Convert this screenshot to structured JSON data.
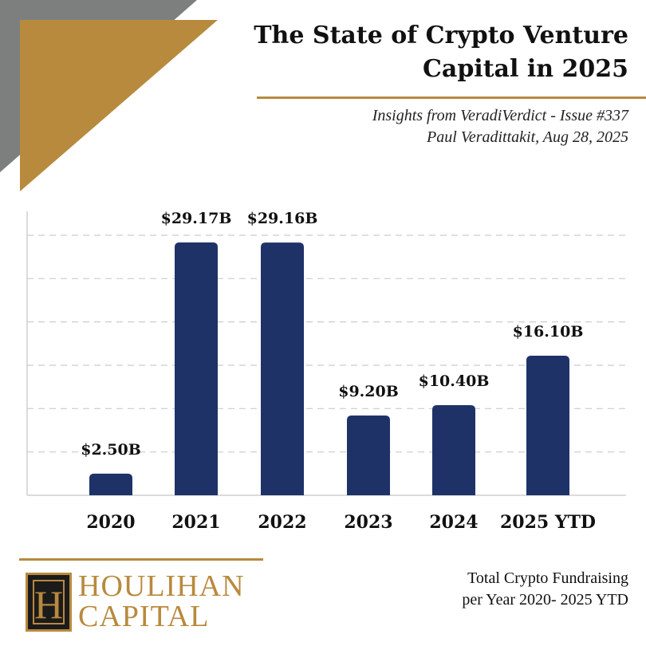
{
  "header": {
    "title_line1": "The State of Crypto Venture",
    "title_line2": "Capital in 2025",
    "subtitle_line1": "Insights from VeradiVerdict - Issue #337",
    "subtitle_line2": "Paul Veradittakit, Aug 28, 2025"
  },
  "footer": {
    "caption_line1": "Total Crypto Fundraising",
    "caption_line2": "per Year 2020- 2025 YTD",
    "logo_monogram": "H",
    "logo_line1": "HOULIHAN",
    "logo_line2": "CAPITAL"
  },
  "colors": {
    "bar": "#1f3268",
    "accent_gold": "#b88a3e",
    "accent_gray": "#7d7f7e",
    "grid": "#cccccc"
  },
  "chart_data": {
    "type": "bar",
    "categories": [
      "2020",
      "2021",
      "2022",
      "2023",
      "2024",
      "2025 YTD"
    ],
    "values": [
      2.5,
      29.17,
      29.16,
      9.2,
      10.4,
      16.1
    ],
    "value_labels": [
      "$2.50B",
      "$29.17B",
      "$29.16B",
      "$9.20B",
      "$10.40B",
      "$16.10B"
    ],
    "title": "",
    "xlabel": "",
    "ylabel": "",
    "ylim": [
      0,
      30
    ],
    "grid": true,
    "legend": "none"
  }
}
